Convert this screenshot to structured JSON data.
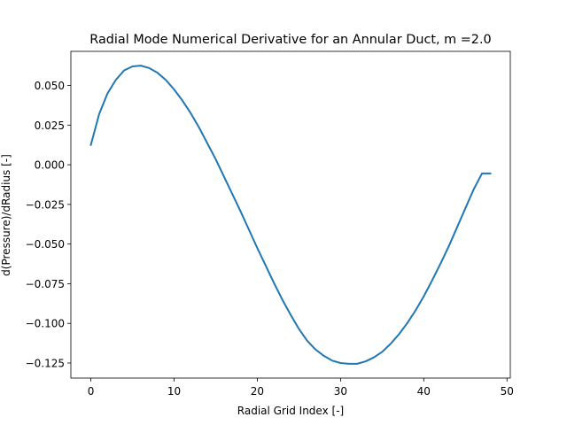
{
  "chart_data": {
    "type": "line",
    "title": "Radial Mode Numerical Derivative for an Annular Duct, m =2.0",
    "xlabel": "Radial Grid Index [-]",
    "ylabel": "d(Pressure)/dRadius [-]",
    "xlim": [
      -2.4,
      50.4
    ],
    "ylim": [
      -0.1345,
      0.0715
    ],
    "xticks": [
      0,
      10,
      20,
      30,
      40,
      50
    ],
    "xtick_labels": [
      "0",
      "10",
      "20",
      "30",
      "40",
      "50"
    ],
    "yticks": [
      0.05,
      0.025,
      0.0,
      -0.025,
      -0.05,
      -0.075,
      -0.1,
      -0.125
    ],
    "ytick_labels": [
      "0.050",
      "0.025",
      "0.000",
      "−0.025",
      "−0.050",
      "−0.075",
      "−0.100",
      "−0.125"
    ],
    "grid": false,
    "series": [
      {
        "color": "#1f77b4",
        "x": [
          0,
          1,
          2,
          3,
          4,
          5,
          6,
          7,
          8,
          9,
          10,
          11,
          12,
          13,
          14,
          15,
          16,
          17,
          18,
          19,
          20,
          21,
          22,
          23,
          24,
          25,
          26,
          27,
          28,
          29,
          30,
          31,
          32,
          33,
          34,
          35,
          36,
          37,
          38,
          39,
          40,
          41,
          42,
          43,
          44,
          45,
          46,
          47,
          48
        ],
        "y": [
          0.0125,
          0.032,
          0.045,
          0.0535,
          0.0595,
          0.062,
          0.0625,
          0.061,
          0.058,
          0.0535,
          0.0475,
          0.0405,
          0.0325,
          0.0235,
          0.0135,
          0.0035,
          -0.0075,
          -0.0185,
          -0.0295,
          -0.041,
          -0.0525,
          -0.0635,
          -0.0745,
          -0.085,
          -0.0945,
          -0.1035,
          -0.111,
          -0.1165,
          -0.1205,
          -0.1235,
          -0.125,
          -0.1255,
          -0.1255,
          -0.124,
          -0.1215,
          -0.118,
          -0.113,
          -0.107,
          -0.1,
          -0.092,
          -0.083,
          -0.073,
          -0.0625,
          -0.0515,
          -0.0395,
          -0.0275,
          -0.0155,
          -0.0055,
          -0.0055
        ]
      }
    ]
  }
}
